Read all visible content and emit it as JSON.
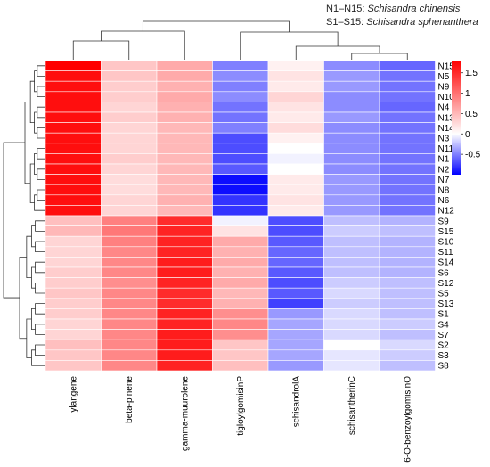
{
  "chart_data": {
    "type": "heatmap",
    "title": "",
    "notes": [
      {
        "prefix": "N1–N15: ",
        "species": "Schisandra chinensis"
      },
      {
        "prefix": "S1–S15: ",
        "species": "Schisandra sphenanthera"
      }
    ],
    "columns": [
      "ylangene",
      "beta-pinene",
      "gamma-muurolene",
      "tigloylgomisinP",
      "schisandrolA",
      "schisantherinC",
      "6-O-benzoylgomisinO"
    ],
    "rows": [
      "N15",
      "N5",
      "N9",
      "N10",
      "N4",
      "N13",
      "N14",
      "N3",
      "N11",
      "N1",
      "N2",
      "N7",
      "N8",
      "N6",
      "N12",
      "S9",
      "S15",
      "S10",
      "S11",
      "S14",
      "S6",
      "S12",
      "S5",
      "S13",
      "S1",
      "S4",
      "S7",
      "S2",
      "S3",
      "S8"
    ],
    "values": [
      [
        1.8,
        0.4,
        0.6,
        -0.5,
        0.1,
        -0.45,
        -0.6
      ],
      [
        1.7,
        0.4,
        0.6,
        -0.45,
        0.2,
        -0.4,
        -0.55
      ],
      [
        1.7,
        0.35,
        0.55,
        -0.5,
        0.15,
        -0.4,
        -0.55
      ],
      [
        1.7,
        0.35,
        0.6,
        -0.45,
        0.3,
        -0.45,
        -0.55
      ],
      [
        1.7,
        0.3,
        0.55,
        -0.55,
        0.2,
        -0.45,
        -0.6
      ],
      [
        1.7,
        0.35,
        0.55,
        -0.55,
        0.15,
        -0.4,
        -0.55
      ],
      [
        1.7,
        0.3,
        0.5,
        -0.5,
        0.25,
        -0.45,
        -0.55
      ],
      [
        1.7,
        0.3,
        0.5,
        -0.7,
        0.1,
        -0.45,
        -0.55
      ],
      [
        1.7,
        0.3,
        0.5,
        -0.7,
        0.0,
        -0.45,
        -0.55
      ],
      [
        1.7,
        0.35,
        0.5,
        -0.7,
        -0.05,
        -0.45,
        -0.55
      ],
      [
        1.7,
        0.3,
        0.5,
        -0.65,
        0.0,
        -0.45,
        -0.55
      ],
      [
        1.7,
        0.25,
        0.5,
        -0.95,
        0.15,
        -0.4,
        -0.55
      ],
      [
        1.7,
        0.25,
        0.5,
        -0.95,
        0.15,
        -0.4,
        -0.55
      ],
      [
        1.7,
        0.3,
        0.55,
        -0.8,
        0.2,
        -0.4,
        -0.55
      ],
      [
        1.7,
        0.3,
        0.5,
        -0.8,
        0.15,
        -0.4,
        -0.55
      ],
      [
        0.45,
        0.9,
        1.5,
        -0.05,
        -0.7,
        -0.25,
        -0.3
      ],
      [
        0.5,
        0.95,
        1.55,
        0.2,
        -0.7,
        -0.2,
        -0.25
      ],
      [
        0.3,
        0.9,
        1.55,
        0.6,
        -0.65,
        -0.25,
        -0.3
      ],
      [
        0.3,
        0.85,
        1.55,
        0.55,
        -0.6,
        -0.25,
        -0.3
      ],
      [
        0.3,
        0.85,
        1.6,
        0.6,
        -0.6,
        -0.25,
        -0.3
      ],
      [
        0.35,
        0.85,
        1.6,
        0.55,
        -0.65,
        -0.25,
        -0.3
      ],
      [
        0.35,
        0.8,
        1.55,
        0.6,
        -0.7,
        -0.2,
        -0.25
      ],
      [
        0.4,
        0.85,
        1.5,
        0.5,
        -0.65,
        -0.15,
        -0.25
      ],
      [
        0.35,
        0.85,
        1.5,
        0.55,
        -0.75,
        -0.2,
        -0.25
      ],
      [
        0.35,
        0.85,
        1.55,
        0.8,
        -0.4,
        -0.15,
        -0.25
      ],
      [
        0.3,
        0.85,
        1.55,
        0.85,
        -0.35,
        -0.15,
        -0.2
      ],
      [
        0.3,
        0.85,
        1.6,
        0.8,
        -0.35,
        -0.15,
        -0.25
      ],
      [
        0.45,
        0.85,
        1.6,
        0.4,
        -0.35,
        0.0,
        -0.15
      ],
      [
        0.4,
        0.85,
        1.6,
        0.4,
        -0.35,
        -0.1,
        -0.2
      ],
      [
        0.4,
        0.85,
        1.55,
        0.45,
        -0.4,
        -0.1,
        -0.25
      ]
    ],
    "color_scale": {
      "low": "#0000ff",
      "mid": "#ffffff",
      "high": "#ff0000",
      "min": -1.0,
      "max": 1.8
    },
    "colorbar_ticks": [
      "1.5",
      "1",
      "0.5",
      "0",
      "-0.5"
    ],
    "colorbar_tick_values": [
      1.5,
      1.0,
      0.5,
      0.0,
      -0.5
    ],
    "grid": false
  }
}
